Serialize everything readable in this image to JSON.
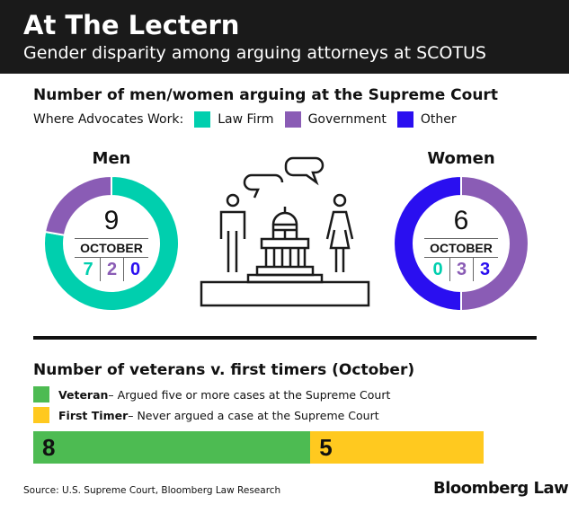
{
  "header": {
    "title": "At The Lectern",
    "subtitle": "Gender disparity among arguing attorneys at SCOTUS"
  },
  "section1": {
    "title": "Number of men/women arguing at the Supreme Court",
    "legend_label": "Where Advocates Work:",
    "legend": [
      {
        "label": "Law Firm",
        "color": "#00cfae"
      },
      {
        "label": "Government",
        "color": "#8a5cb5"
      },
      {
        "label": "Other",
        "color": "#2a0ff0"
      }
    ]
  },
  "chart_data": [
    {
      "type": "pie",
      "title": "Men",
      "total": 9,
      "period": "OCTOBER",
      "categories": [
        "Law Firm",
        "Government",
        "Other"
      ],
      "values": [
        7,
        2,
        0
      ]
    },
    {
      "type": "pie",
      "title": "Women",
      "total": 6,
      "period": "OCTOBER",
      "categories": [
        "Law Firm",
        "Government",
        "Other"
      ],
      "values": [
        0,
        3,
        3
      ]
    },
    {
      "type": "bar",
      "title": "Number of veterans v. first timers (October)",
      "categories": [
        "Veteran",
        "First Timer"
      ],
      "values": [
        8,
        5
      ],
      "colors": [
        "#4dbb52",
        "#ffc91f"
      ]
    }
  ],
  "section2": {
    "title": "Number of veterans v. first timers (October)",
    "legend": [
      {
        "label": "Veteran",
        "desc": " – Argued five or more cases at the Supreme Court"
      },
      {
        "label": "First Timer",
        "desc": " – Never argued a case at the Supreme Court"
      }
    ]
  },
  "footer": {
    "source": "Source: U.S. Supreme Court, Bloomberg Law Research",
    "logo": "Bloomberg Law"
  }
}
